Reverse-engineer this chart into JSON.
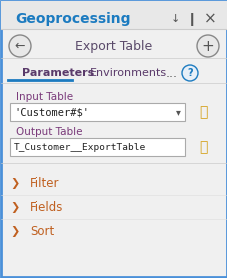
{
  "bg_color": "#f0f0f0",
  "border_color": "#4a90d9",
  "title_panel": "Geoprocessing",
  "title_panel_color": "#1c7bc0",
  "subtitle": "Export Table",
  "subtitle_color": "#5a4a6a",
  "tab1": "Parameters",
  "tab2": "Environments",
  "tab1_color": "#5a3a6a",
  "tab2_color": "#5a3a6a",
  "tab_underline_color": "#1c7bc0",
  "label1": "Input Table",
  "label1_color": "#7a3a7a",
  "input1_text": "'Customer#$'",
  "input1_bg": "#ffffff",
  "input1_border": "#aaaaaa",
  "label2": "Output Table",
  "label2_color": "#7a3a7a",
  "input2_text": "T_Customer__ExportTable",
  "input2_bg": "#ffffff",
  "input2_border": "#aaaaaa",
  "folder_color": "#d4a017",
  "section1": "Filter",
  "section2": "Fields",
  "section3": "Sort",
  "section_color": "#c06020",
  "arrow_color": "#c06020",
  "header_bg": "#e8e8e8",
  "dots_color": "#555555",
  "question_color": "#1c7bc0"
}
